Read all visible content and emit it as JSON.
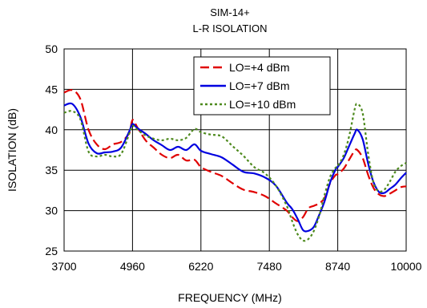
{
  "chart_data": {
    "type": "line",
    "title": "SIM-14+",
    "subtitle": "L-R ISOLATION",
    "xlabel": "FREQUENCY (MHz)",
    "ylabel": "ISOLATION (dB)",
    "xlim": [
      3700,
      10000
    ],
    "ylim": [
      25,
      50
    ],
    "xticks": [
      3700,
      4960,
      6220,
      7480,
      8740,
      10000
    ],
    "yticks": [
      25,
      30,
      35,
      40,
      45,
      50
    ],
    "grid": true,
    "legend_position": "top-right",
    "series": [
      {
        "name": "LO=+4 dBm",
        "color": "#e00000",
        "dash": "long-dash",
        "x": [
          3700,
          3850,
          4000,
          4150,
          4300,
          4450,
          4600,
          4750,
          4900,
          4960,
          5050,
          5200,
          5350,
          5500,
          5650,
          5800,
          5950,
          6100,
          6220,
          6400,
          6600,
          6800,
          7000,
          7200,
          7400,
          7600,
          7800,
          7900,
          8000,
          8100,
          8200,
          8300,
          8400,
          8500,
          8600,
          8700,
          8740,
          8850,
          8950,
          9050,
          9100,
          9200,
          9300,
          9400,
          9500,
          9600,
          9700,
          9800,
          9900,
          10000
        ],
        "y": [
          44.6,
          44.9,
          43.8,
          40.0,
          38.2,
          37.6,
          38.2,
          38.5,
          39.6,
          41.2,
          40.3,
          38.7,
          37.8,
          36.9,
          36.5,
          36.9,
          36.2,
          36.3,
          35.4,
          34.8,
          34.3,
          33.4,
          32.6,
          32.3,
          31.8,
          30.9,
          30.0,
          29.2,
          28.7,
          29.2,
          30.3,
          30.6,
          30.9,
          31.6,
          33.4,
          34.4,
          34.5,
          35.2,
          36.3,
          37.4,
          37.5,
          36.5,
          34.4,
          32.8,
          32.0,
          31.8,
          32.1,
          32.5,
          32.9,
          33.0
        ]
      },
      {
        "name": "LO=+7 dBm",
        "color": "#0000e0",
        "dash": "solid",
        "x": [
          3700,
          3850,
          4000,
          4150,
          4300,
          4450,
          4600,
          4750,
          4900,
          4960,
          5050,
          5200,
          5350,
          5500,
          5650,
          5800,
          5950,
          6100,
          6220,
          6400,
          6600,
          6800,
          7000,
          7200,
          7400,
          7600,
          7800,
          7900,
          8000,
          8100,
          8200,
          8300,
          8400,
          8500,
          8600,
          8700,
          8740,
          8850,
          8950,
          9050,
          9100,
          9200,
          9300,
          9400,
          9500,
          9600,
          9700,
          9800,
          9900,
          10000
        ],
        "y": [
          43.0,
          43.2,
          41.6,
          38.3,
          37.1,
          37.2,
          37.3,
          37.8,
          39.8,
          40.7,
          40.2,
          39.5,
          38.7,
          38.1,
          37.5,
          37.9,
          37.5,
          38.2,
          37.4,
          37.0,
          36.6,
          35.7,
          34.8,
          34.6,
          34.1,
          33.1,
          31.0,
          30.2,
          29.0,
          27.6,
          27.5,
          28.0,
          29.5,
          31.2,
          33.5,
          35.1,
          35.4,
          36.5,
          38.0,
          39.5,
          40.0,
          38.8,
          35.8,
          33.5,
          32.3,
          32.2,
          32.7,
          33.2,
          34.0,
          34.7
        ]
      },
      {
        "name": "LO=+10 dBm",
        "color": "#4e8a1e",
        "dash": "dotted",
        "x": [
          3700,
          3850,
          4000,
          4150,
          4300,
          4450,
          4600,
          4750,
          4900,
          4960,
          5050,
          5200,
          5350,
          5500,
          5650,
          5800,
          5950,
          6100,
          6220,
          6400,
          6600,
          6800,
          7000,
          7200,
          7400,
          7600,
          7800,
          7900,
          8000,
          8100,
          8200,
          8300,
          8400,
          8500,
          8600,
          8700,
          8740,
          8850,
          8950,
          9050,
          9100,
          9200,
          9300,
          9400,
          9500,
          9600,
          9700,
          9800,
          9900,
          10000
        ],
        "y": [
          42.1,
          42.3,
          41.3,
          37.3,
          36.7,
          36.9,
          36.7,
          37.0,
          39.5,
          40.5,
          40.0,
          39.3,
          38.9,
          38.7,
          38.9,
          38.7,
          39.0,
          40.1,
          39.7,
          39.4,
          39.2,
          38.0,
          36.8,
          35.4,
          34.6,
          33.1,
          30.6,
          28.7,
          27.1,
          26.3,
          26.5,
          27.5,
          29.4,
          32.0,
          34.2,
          35.3,
          35.5,
          36.9,
          39.2,
          42.5,
          43.2,
          42.0,
          37.0,
          33.4,
          32.4,
          32.6,
          33.6,
          34.8,
          35.5,
          35.9
        ]
      }
    ]
  }
}
